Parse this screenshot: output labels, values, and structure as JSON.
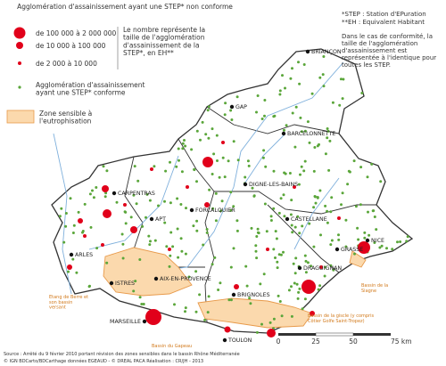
{
  "legend": {
    "nonconform_title": "Agglomération d'assainissement ayant une STEP* non conforme",
    "sizes": [
      "de 100 000 à 2 000 000",
      "de 10 000 à 100 000",
      "de 2 000 à 10 000"
    ],
    "size_note": "Le nombre représente la taille de l'agglomération d'assainissement de la STEP*, en EH**",
    "conform": "Agglomération d'assainissement ayant une STEP* conforme",
    "zone": "Zone sensible à l'eutrophisation"
  },
  "notes": {
    "step": "*STEP : Station d'EPuration",
    "eh": "**EH : Equivalent Habitant",
    "conformity": "Dans le cas de conformité, la taille de l'agglomération d'assainissement est représentée à l'identique pour toutes les STEP."
  },
  "cities": [
    "BRIANÇON",
    "GAP",
    "BARCELONNETTE",
    "DIGNE-LES-BAINS",
    "CARPENTRAS",
    "FORCALQUIER",
    "APT",
    "CASTELLANE",
    "NICE",
    "GRASSE",
    "ARLES",
    "DRAGUIGNAN",
    "ISTRES",
    "AIX-EN-PROVENCE",
    "BRIGNOLES",
    "MARSEILLE",
    "TOULON"
  ],
  "basins": [
    "Bassin de la Siagne",
    "Etang de Berre et son bassin versant",
    "Bassin du Gapeau",
    "Bassin de la giscle (y compris Côtier Golfe Saint-Tropez)"
  ],
  "scale": [
    "0",
    "25",
    "50",
    "75 km"
  ],
  "source": [
    "Source : Arrêté du 9 février 2010 portant révision des zones sensibles dans le bassin Rhône Méditerranée",
    "© IGN BDCarto/BDCarthage données EGEAUD - © DREAL PACA  Réalisation : CR/JH - 2013"
  ]
}
